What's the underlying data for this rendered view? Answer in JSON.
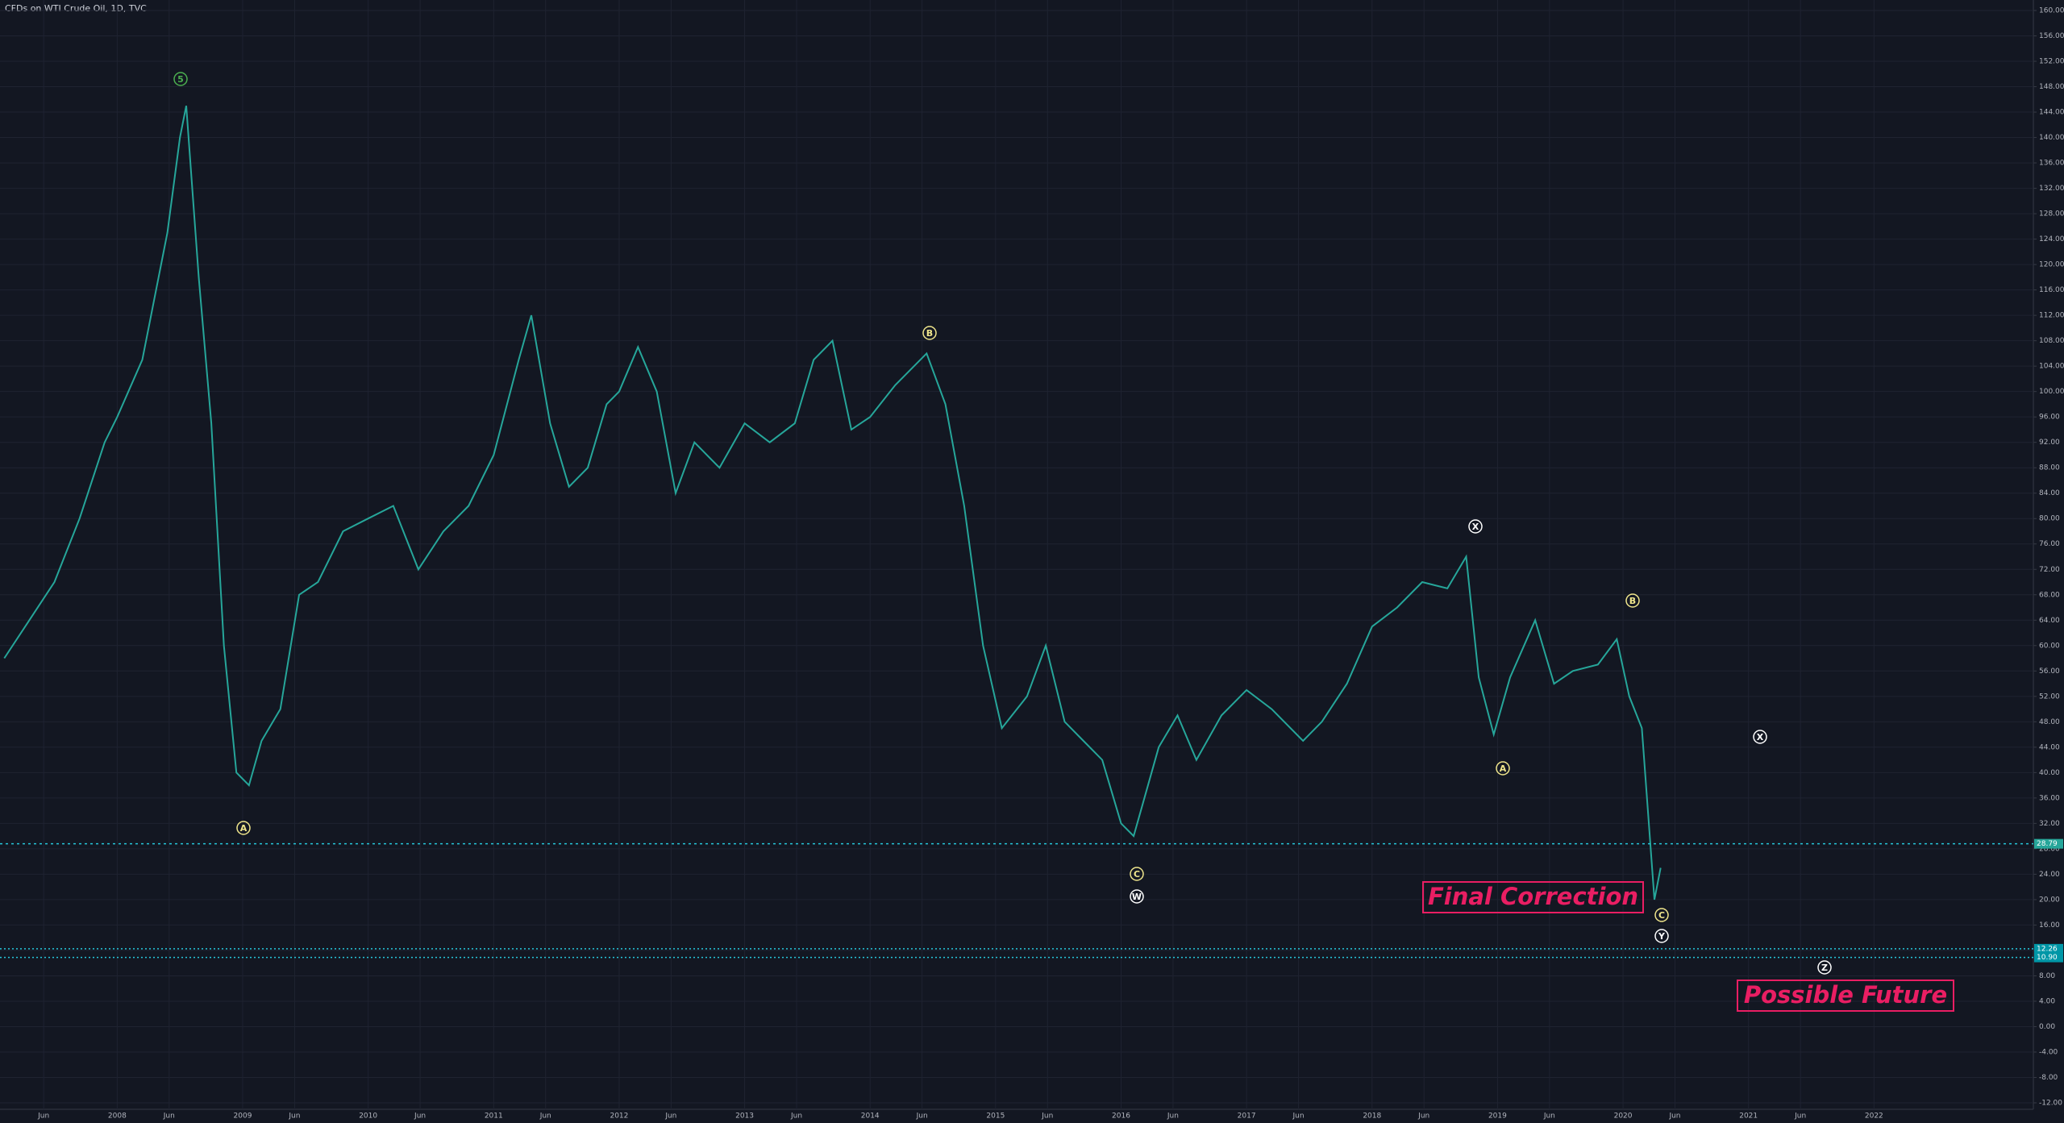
{
  "chart_data": {
    "type": "line",
    "title": "CFDs on WTI Crude Oil, 1D, TVC",
    "color": "#26a69a",
    "x": [
      2007.1,
      2007.3,
      2007.5,
      2007.7,
      2007.9,
      2008.0,
      2008.2,
      2008.4,
      2008.5,
      2008.55,
      2008.65,
      2008.75,
      2008.85,
      2008.95,
      2009.05,
      2009.15,
      2009.3,
      2009.45,
      2009.6,
      2009.8,
      2010.0,
      2010.2,
      2010.4,
      2010.6,
      2010.8,
      2011.0,
      2011.2,
      2011.3,
      2011.45,
      2011.6,
      2011.75,
      2011.9,
      2012.0,
      2012.15,
      2012.3,
      2012.45,
      2012.6,
      2012.8,
      2013.0,
      2013.2,
      2013.4,
      2013.55,
      2013.7,
      2013.85,
      2014.0,
      2014.2,
      2014.45,
      2014.6,
      2014.75,
      2014.9,
      2015.05,
      2015.25,
      2015.4,
      2015.55,
      2015.7,
      2015.85,
      2016.0,
      2016.1,
      2016.3,
      2016.45,
      2016.6,
      2016.8,
      2017.0,
      2017.2,
      2017.45,
      2017.6,
      2017.8,
      2018.0,
      2018.2,
      2018.4,
      2018.6,
      2018.75,
      2018.85,
      2018.97,
      2019.1,
      2019.3,
      2019.45,
      2019.6,
      2019.8,
      2019.95,
      2020.05,
      2020.15,
      2020.25,
      2020.3
    ],
    "values": [
      58,
      64,
      70,
      80,
      92,
      96,
      105,
      125,
      140,
      145,
      118,
      95,
      60,
      40,
      38,
      45,
      50,
      68,
      70,
      78,
      80,
      82,
      72,
      78,
      82,
      90,
      105,
      112,
      95,
      85,
      88,
      98,
      100,
      107,
      100,
      84,
      92,
      88,
      95,
      92,
      95,
      105,
      108,
      94,
      96,
      101,
      106,
      98,
      82,
      60,
      47,
      52,
      60,
      48,
      45,
      42,
      32,
      30,
      44,
      49,
      42,
      49,
      53,
      50,
      45,
      48,
      54,
      63,
      66,
      70,
      69,
      74,
      55,
      46,
      55,
      64,
      54,
      56,
      57,
      61,
      52,
      47,
      20,
      25
    ],
    "xlim": [
      2007.066,
      2023.27
    ],
    "ylim": [
      -12,
      160
    ],
    "xticks": [
      {
        "value": 2007.414,
        "label": "Jun"
      },
      2008,
      {
        "value": 2008.414,
        "label": "Jun"
      },
      2009,
      {
        "value": 2009.414,
        "label": "Jun"
      },
      2010,
      {
        "value": 2010.414,
        "label": "Jun"
      },
      2011,
      {
        "value": 2011.414,
        "label": "Jun"
      },
      2012,
      {
        "value": 2012.414,
        "label": "Jun"
      },
      2013,
      {
        "value": 2013.414,
        "label": "Jun"
      },
      2014,
      {
        "value": 2014.414,
        "label": "Jun"
      },
      2015,
      {
        "value": 2015.414,
        "label": "Jun"
      },
      2016,
      {
        "value": 2016.414,
        "label": "Jun"
      },
      2017,
      {
        "value": 2017.414,
        "label": "Jun"
      },
      2018,
      {
        "value": 2018.414,
        "label": "Jun"
      },
      2019,
      {
        "value": 2019.414,
        "label": "Jun"
      },
      2020,
      {
        "value": 2020.414,
        "label": "Jun"
      },
      2021,
      {
        "value": 2021.414,
        "label": "Jun"
      },
      2022
    ],
    "yticks": [
      {
        "value": 160,
        "label": "160.00"
      },
      {
        "value": 156,
        "label": "156.00"
      },
      {
        "value": 152,
        "label": "152.00"
      },
      {
        "value": 148,
        "label": "148.00"
      },
      {
        "value": 144,
        "label": "144.00"
      },
      {
        "value": 140,
        "label": "140.00"
      },
      {
        "value": 136,
        "label": "136.00"
      },
      {
        "value": 132,
        "label": "132.00"
      },
      {
        "value": 128,
        "label": "128.00"
      },
      {
        "value": 124,
        "label": "124.00"
      },
      {
        "value": 120,
        "label": "120.00"
      },
      {
        "value": 116,
        "label": "116.00"
      },
      {
        "value": 112,
        "label": "112.00"
      },
      {
        "value": 108,
        "label": "108.00"
      },
      {
        "value": 104,
        "label": "104.00"
      },
      {
        "value": 100,
        "label": "100.00"
      },
      {
        "value": 96,
        "label": "96.00"
      },
      {
        "value": 92,
        "label": "92.00"
      },
      {
        "value": 88,
        "label": "88.00"
      },
      {
        "value": 84,
        "label": "84.00"
      },
      {
        "value": 80,
        "label": "80.00"
      },
      {
        "value": 76,
        "label": "76.00"
      },
      {
        "value": 72,
        "label": "72.00"
      },
      {
        "value": 68,
        "label": "68.00"
      },
      {
        "value": 64,
        "label": "64.00"
      },
      {
        "value": 60,
        "label": "60.00"
      },
      {
        "value": 56,
        "label": "56.00"
      },
      {
        "value": 52,
        "label": "52.00"
      },
      {
        "value": 48,
        "label": "48.00"
      },
      {
        "value": 44,
        "label": "44.00"
      },
      {
        "value": 40,
        "label": "40.00"
      },
      {
        "value": 36,
        "label": "36.00"
      },
      {
        "value": 32,
        "label": "32.00"
      },
      {
        "value": 28,
        "label": "28.00"
      },
      {
        "value": 24,
        "label": "24.00"
      },
      {
        "value": 20,
        "label": "20.00"
      },
      {
        "value": 16,
        "label": "16.00"
      },
      {
        "value": 12,
        "label": "12.00"
      },
      {
        "value": 8,
        "label": "8.00"
      },
      {
        "value": 4,
        "label": "4.00"
      },
      {
        "value": 0,
        "label": "0.00"
      },
      {
        "value": -4,
        "label": "-4.00"
      },
      {
        "value": -8,
        "label": "-8.00"
      },
      {
        "value": -12,
        "label": "-12.00"
      }
    ],
    "grid": true,
    "price_lines": [
      {
        "value": 28.79,
        "label": "28.79"
      },
      {
        "value": 12.26,
        "label": "12.26"
      },
      {
        "value": 10.9,
        "label": "10.90"
      }
    ],
    "wave_labels": [
      {
        "text": "5",
        "color": "#4caf50"
      },
      {
        "text": "A",
        "color": "#f0e68c"
      },
      {
        "text": "B",
        "color": "#f0e68c"
      },
      {
        "text": "C",
        "color": "#f0e68c"
      },
      {
        "text": "W",
        "color": "#ffffff"
      },
      {
        "text": "X",
        "color": "#ffffff"
      },
      {
        "text": "A",
        "color": "#f0e68c"
      },
      {
        "text": "B",
        "color": "#f0e68c"
      },
      {
        "text": "C",
        "color": "#f0e68c"
      },
      {
        "text": "Y",
        "color": "#ffffff"
      },
      {
        "text": "X",
        "color": "#ffffff"
      },
      {
        "text": "Z",
        "color": "#ffffff"
      }
    ],
    "notes": [
      "Final Correction",
      "Possible Future"
    ]
  }
}
